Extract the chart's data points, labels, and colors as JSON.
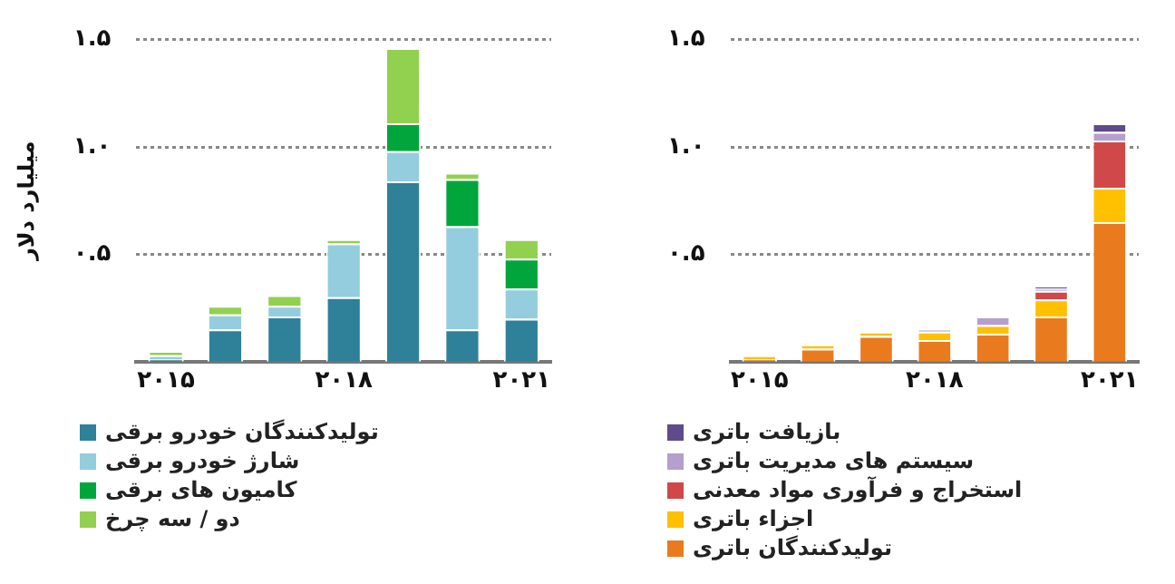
{
  "chart_data": [
    {
      "type": "bar",
      "stacked": true,
      "ylabel": "میلیارد دلار",
      "categories": [
        "۲۰۱۵",
        null,
        null,
        "۲۰۱۸",
        null,
        null,
        "۲۰۲۱"
      ],
      "ylim": [
        0,
        1.5
      ],
      "yticks": [
        {
          "value": 0.5,
          "label": "۰.۵"
        },
        {
          "value": 1.0,
          "label": "۱.۰"
        },
        {
          "value": 1.5,
          "label": "۱.۵"
        }
      ],
      "grid": "y",
      "legend": "bottom",
      "series": [
        {
          "name": "تولیدکنندگان خودرو برقی",
          "color": "#2e8199",
          "values": [
            0.01,
            0.15,
            0.21,
            0.3,
            0.84,
            0.15,
            0.2
          ]
        },
        {
          "name": "شارژ خودرو برقی",
          "color": "#94cddd",
          "values": [
            0.02,
            0.07,
            0.05,
            0.25,
            0.14,
            0.48,
            0.14
          ]
        },
        {
          "name": "کامیون های برقی",
          "color": "#00a63c",
          "values": [
            0,
            0,
            0,
            0,
            0.13,
            0.22,
            0.14
          ]
        },
        {
          "name": "دو / سه چرخ",
          "color": "#92d050",
          "values": [
            0.02,
            0.04,
            0.05,
            0.02,
            0.35,
            0.03,
            0.09
          ]
        }
      ]
    },
    {
      "type": "bar",
      "stacked": true,
      "categories": [
        "۲۰۱۵",
        null,
        null,
        "۲۰۱۸",
        null,
        null,
        "۲۰۲۱"
      ],
      "ylim": [
        0,
        1.5
      ],
      "yticks": [
        {
          "value": 0.5,
          "label": "۰.۵"
        },
        {
          "value": 1.0,
          "label": "۱.۰"
        },
        {
          "value": 1.5,
          "label": "۱.۵"
        }
      ],
      "grid": "y",
      "legend": "bottom",
      "series": [
        {
          "name": "تولیدکنندگان باتری",
          "color": "#e97b1e",
          "values": [
            0.01,
            0.06,
            0.12,
            0.1,
            0.13,
            0.21,
            0.65
          ]
        },
        {
          "name": "اجزاء باتری",
          "color": "#ffc000",
          "values": [
            0.02,
            0.02,
            0.02,
            0.04,
            0.04,
            0.08,
            0.16
          ]
        },
        {
          "name": "استخراج و فرآوری مواد معدنی",
          "color": "#d04848",
          "values": [
            0,
            0,
            0,
            0,
            0,
            0.04,
            0.22
          ]
        },
        {
          "name": "سیستم های مدیریت باتری",
          "color": "#b4a0cc",
          "values": [
            0,
            0,
            0,
            0.01,
            0.04,
            0.01,
            0.04
          ]
        },
        {
          "name": "بازیافت باتری",
          "color": "#5f4b8b",
          "values": [
            0,
            0,
            0,
            0,
            0,
            0.01,
            0.04
          ]
        }
      ]
    }
  ]
}
